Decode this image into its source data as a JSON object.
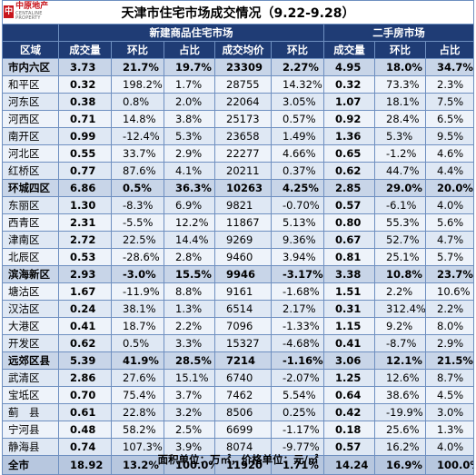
{
  "logo": {
    "brand_cn": "中原地产",
    "brand_en": "CENTALINE PROPERTY"
  },
  "title": "天津市住宅市场成交情况（9.22-9.28）",
  "sections": {
    "new_homes": "新建商品住宅市场",
    "second_hand": "二手房市场"
  },
  "columns": [
    "区域",
    "成交量",
    "环比",
    "占比",
    "成交均价",
    "环比",
    "成交量",
    "环比",
    "占比"
  ],
  "rows": [
    {
      "name": "市内六区",
      "type": "sub",
      "cells": [
        "3.73",
        "21.7%",
        "19.7%",
        "23309",
        "2.27%",
        "4.95",
        "18.0%",
        "34.7%"
      ]
    },
    {
      "name": "和平区",
      "type": "body",
      "cells": [
        "0.32",
        "198.2%",
        "1.7%",
        "28755",
        "14.32%",
        "0.32",
        "73.3%",
        "2.3%"
      ]
    },
    {
      "name": "河东区",
      "type": "body",
      "cells": [
        "0.38",
        "0.8%",
        "2.0%",
        "22064",
        "3.05%",
        "1.07",
        "18.1%",
        "7.5%"
      ]
    },
    {
      "name": "河西区",
      "type": "body",
      "cells": [
        "0.71",
        "14.8%",
        "3.8%",
        "25173",
        "0.57%",
        "0.92",
        "28.4%",
        "6.5%"
      ]
    },
    {
      "name": "南开区",
      "type": "body",
      "cells": [
        "0.99",
        "-12.4%",
        "5.3%",
        "23658",
        "1.49%",
        "1.36",
        "5.3%",
        "9.5%"
      ]
    },
    {
      "name": "河北区",
      "type": "body",
      "cells": [
        "0.55",
        "33.7%",
        "2.9%",
        "22277",
        "4.66%",
        "0.65",
        "-1.2%",
        "4.6%"
      ]
    },
    {
      "name": "红桥区",
      "type": "body",
      "cells": [
        "0.77",
        "87.6%",
        "4.1%",
        "20211",
        "0.37%",
        "0.62",
        "44.7%",
        "4.4%"
      ]
    },
    {
      "name": "环城四区",
      "type": "sub",
      "cells": [
        "6.86",
        "0.5%",
        "36.3%",
        "10263",
        "4.25%",
        "2.85",
        "29.0%",
        "20.0%"
      ]
    },
    {
      "name": "东丽区",
      "type": "body",
      "cells": [
        "1.30",
        "-8.3%",
        "6.9%",
        "9821",
        "-0.70%",
        "0.57",
        "-6.1%",
        "4.0%"
      ]
    },
    {
      "name": "西青区",
      "type": "body",
      "cells": [
        "2.31",
        "-5.5%",
        "12.2%",
        "11867",
        "5.13%",
        "0.80",
        "55.3%",
        "5.6%"
      ]
    },
    {
      "name": "津南区",
      "type": "body",
      "cells": [
        "2.72",
        "22.5%",
        "14.4%",
        "9269",
        "9.36%",
        "0.67",
        "52.7%",
        "4.7%"
      ]
    },
    {
      "name": "北辰区",
      "type": "body",
      "cells": [
        "0.53",
        "-28.6%",
        "2.8%",
        "9460",
        "3.94%",
        "0.81",
        "25.1%",
        "5.7%"
      ]
    },
    {
      "name": "滨海新区",
      "type": "sub",
      "cells": [
        "2.93",
        "-3.0%",
        "15.5%",
        "9946",
        "-3.17%",
        "3.38",
        "10.8%",
        "23.7%"
      ]
    },
    {
      "name": "塘沽区",
      "type": "body",
      "cells": [
        "1.67",
        "-11.9%",
        "8.8%",
        "9161",
        "-1.68%",
        "1.51",
        "2.2%",
        "10.6%"
      ]
    },
    {
      "name": "汉沽区",
      "type": "body",
      "cells": [
        "0.24",
        "38.1%",
        "1.3%",
        "6514",
        "2.17%",
        "0.31",
        "312.4%",
        "2.2%"
      ]
    },
    {
      "name": "大港区",
      "type": "body",
      "cells": [
        "0.41",
        "18.7%",
        "2.2%",
        "7096",
        "-1.33%",
        "1.15",
        "9.2%",
        "8.0%"
      ]
    },
    {
      "name": "开发区",
      "type": "body",
      "cells": [
        "0.62",
        "0.5%",
        "3.3%",
        "15327",
        "-4.68%",
        "0.41",
        "-8.7%",
        "2.9%"
      ]
    },
    {
      "name": "远郊区县",
      "type": "sub",
      "cells": [
        "5.39",
        "41.9%",
        "28.5%",
        "7214",
        "-1.16%",
        "3.06",
        "12.1%",
        "21.5%"
      ]
    },
    {
      "name": "武清区",
      "type": "body",
      "cells": [
        "2.86",
        "27.6%",
        "15.1%",
        "6740",
        "-2.07%",
        "1.25",
        "12.6%",
        "8.7%"
      ]
    },
    {
      "name": "宝坻区",
      "type": "body",
      "cells": [
        "0.70",
        "75.4%",
        "3.7%",
        "7462",
        "5.54%",
        "0.64",
        "38.6%",
        "4.5%"
      ]
    },
    {
      "name": "蓟　县",
      "type": "body",
      "cells": [
        "0.61",
        "22.8%",
        "3.2%",
        "8506",
        "0.25%",
        "0.42",
        "-19.9%",
        "3.0%"
      ]
    },
    {
      "name": "宁河县",
      "type": "body",
      "cells": [
        "0.48",
        "58.2%",
        "2.5%",
        "6699",
        "-1.17%",
        "0.18",
        "25.6%",
        "1.3%"
      ]
    },
    {
      "name": "静海县",
      "type": "body",
      "cells": [
        "0.74",
        "107.3%",
        "3.9%",
        "8074",
        "-9.77%",
        "0.57",
        "16.2%",
        "4.0%"
      ]
    },
    {
      "name": "全市",
      "type": "total",
      "cells": [
        "18.92",
        "13.2%",
        "100.0%",
        "11920",
        "1.71%",
        "14.24",
        "16.9%",
        "100.0%"
      ]
    }
  ],
  "footnote": "面积单位：万㎡，价格单位：元/㎡"
}
